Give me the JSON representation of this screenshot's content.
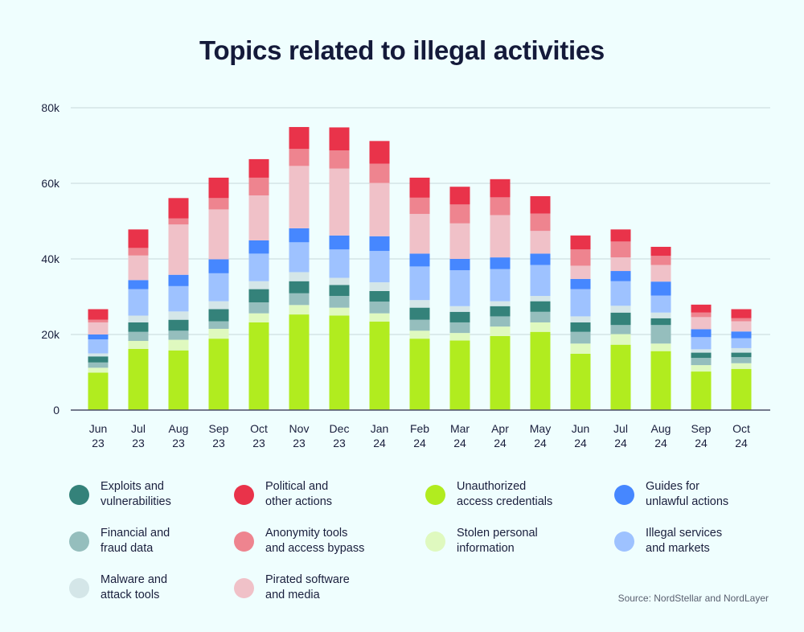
{
  "chart_data": {
    "type": "bar",
    "stacked": true,
    "title": "Topics related to illegal activities",
    "xlabel": "",
    "ylabel": "",
    "ylim": [
      0,
      80000
    ],
    "yticks": [
      0,
      20000,
      40000,
      60000,
      80000
    ],
    "ytick_labels": [
      "0",
      "20k",
      "40k",
      "60k",
      "80k"
    ],
    "grid": true,
    "legend_position": "bottom",
    "categories": [
      [
        "Jun",
        "23"
      ],
      [
        "Jul",
        "23"
      ],
      [
        "Aug",
        "23"
      ],
      [
        "Sep",
        "23"
      ],
      [
        "Oct",
        "23"
      ],
      [
        "Nov",
        "23"
      ],
      [
        "Dec",
        "23"
      ],
      [
        "Jan",
        "24"
      ],
      [
        "Feb",
        "24"
      ],
      [
        "Mar",
        "24"
      ],
      [
        "Apr",
        "24"
      ],
      [
        "May",
        "24"
      ],
      [
        "Jun",
        "24"
      ],
      [
        "Jul",
        "24"
      ],
      [
        "Aug",
        "24"
      ],
      [
        "Sep",
        "24"
      ],
      [
        "Oct",
        "24"
      ]
    ],
    "series": [
      {
        "name": [
          "Unauthorized",
          "access credentials"
        ],
        "color": "#b1ec1f",
        "values": [
          9900,
          16200,
          15800,
          18900,
          23200,
          25300,
          25000,
          23400,
          18900,
          18400,
          19600,
          20700,
          14900,
          17300,
          15600,
          10200,
          10900
        ]
      },
      {
        "name": [
          "Stolen personal",
          "information"
        ],
        "color": "#dff9bf",
        "values": [
          1300,
          2100,
          2800,
          2600,
          2400,
          2500,
          2100,
          2200,
          2100,
          2000,
          2500,
          2500,
          2700,
          2800,
          2000,
          1700,
          1500
        ]
      },
      {
        "name": [
          "Financial and",
          "fraud data"
        ],
        "color": "#95bebd",
        "values": [
          1400,
          2400,
          2400,
          2000,
          2900,
          3100,
          3100,
          3100,
          2900,
          2800,
          2700,
          2800,
          3100,
          2400,
          4900,
          1900,
          1600
        ]
      },
      {
        "name": [
          "Exploits and",
          "vulnerabilities"
        ],
        "color": "#34827a",
        "values": [
          1600,
          2500,
          2900,
          3200,
          3500,
          3200,
          2900,
          2800,
          3200,
          2800,
          2700,
          2800,
          2500,
          3300,
          1800,
          1400,
          1200
        ]
      },
      {
        "name": [
          "Malware and",
          "attack tools"
        ],
        "color": "#d4e6e8",
        "values": [
          800,
          1800,
          2200,
          2100,
          2100,
          2400,
          1900,
          2300,
          2000,
          1500,
          1300,
          1400,
          1600,
          1800,
          1500,
          900,
          1200
        ]
      },
      {
        "name": [
          "Illegal services",
          "and markets"
        ],
        "color": "#9ec2ff",
        "values": [
          3700,
          7000,
          6700,
          7400,
          7300,
          7900,
          7500,
          8300,
          8900,
          9500,
          8500,
          8200,
          7200,
          6500,
          4500,
          3200,
          2600
        ]
      },
      {
        "name": [
          "Guides for",
          "unlawful actions"
        ],
        "color": "#4687ff",
        "values": [
          1300,
          2400,
          3000,
          3700,
          3500,
          3700,
          3700,
          3900,
          3400,
          3000,
          3100,
          3000,
          2700,
          2700,
          3700,
          2100,
          1800
        ]
      },
      {
        "name": [
          "Pirated software",
          "and media"
        ],
        "color": "#f0c1c8",
        "values": [
          3200,
          6500,
          13300,
          13200,
          11900,
          16500,
          17700,
          14100,
          10500,
          9400,
          11200,
          6000,
          3500,
          3600,
          4400,
          3200,
          2700
        ]
      },
      {
        "name": [
          "Anonymity tools",
          "and access bypass"
        ],
        "color": "#ee848f",
        "values": [
          700,
          2000,
          1600,
          3000,
          4700,
          4500,
          4800,
          5100,
          4300,
          5000,
          4700,
          4600,
          4300,
          4200,
          2400,
          1200,
          800
        ]
      },
      {
        "name": [
          "Political and",
          "other actions"
        ],
        "color": "#e9334a",
        "values": [
          2800,
          4900,
          5400,
          5400,
          4900,
          5800,
          6100,
          6000,
          5300,
          4700,
          4800,
          4600,
          3700,
          3200,
          2400,
          2100,
          2400
        ]
      }
    ]
  },
  "legend_order": [
    3,
    9,
    0,
    6,
    2,
    8,
    1,
    5,
    4,
    7
  ],
  "source": "Source: NordStellar and NordLayer"
}
